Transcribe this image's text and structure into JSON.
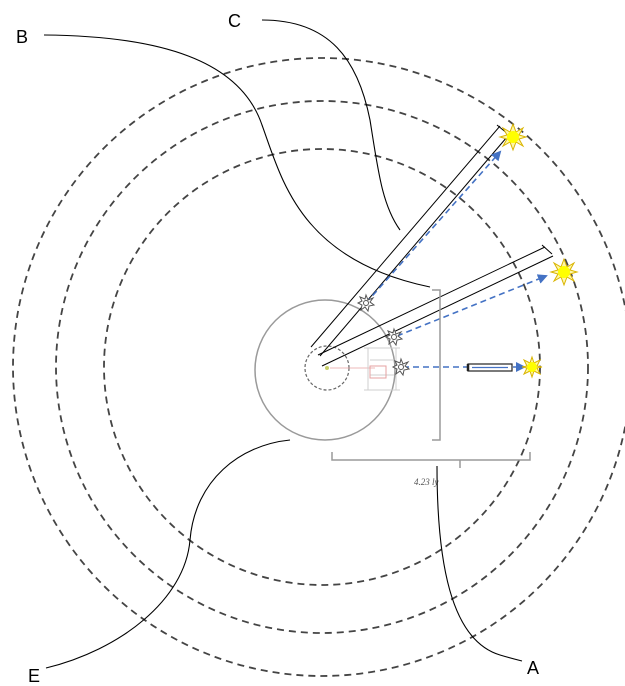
{
  "labels": {
    "a": "A",
    "b": "B",
    "c": "C",
    "e": "E"
  },
  "measurement": "4.23 ly",
  "colors": {
    "orbit_dash": "#444444",
    "leader": "#000000",
    "arrow": "#4472C4",
    "star_fill": "#ffff00",
    "star_rays": "#f2c94c",
    "sun_circle": "#9a9a9a",
    "bracket": "#9a9a9a"
  },
  "icons": {
    "star": "sun-icon",
    "probe": "spacecraft-icon"
  }
}
